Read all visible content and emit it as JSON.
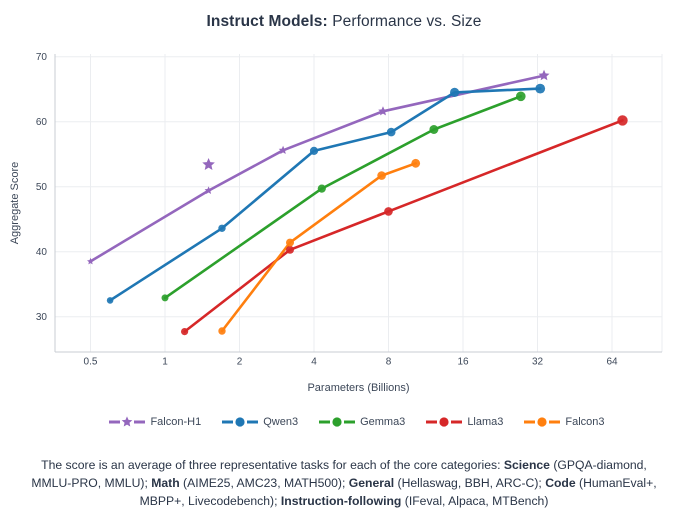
{
  "title": {
    "bold": "Instruct Models:",
    "regular": " Performance vs. Size"
  },
  "chart_data": {
    "type": "line",
    "title": "Instruct Models: Performance vs. Size",
    "xlabel": "Parameters (Billions)",
    "ylabel": "Aggregate Score",
    "x_scale": "log2",
    "x_ticks": [
      0.5,
      1,
      2,
      4,
      8,
      16,
      32,
      64
    ],
    "y_ticks": [
      30,
      40,
      50,
      60,
      70
    ],
    "xlim": [
      0.36,
      102
    ],
    "ylim": [
      24.5,
      70.5
    ],
    "grid": true,
    "legend_position": "bottom",
    "series": [
      {
        "name": "Falcon-H1",
        "color": "#9467bd",
        "marker": "star",
        "points": [
          [
            0.5,
            38.5
          ],
          [
            1.5,
            49.4
          ],
          [
            3,
            55.6
          ],
          [
            7.6,
            61.6
          ],
          [
            34,
            67.1
          ]
        ],
        "isolated_points": [
          [
            1.5,
            53.4
          ]
        ]
      },
      {
        "name": "Qwen3",
        "color": "#1f77b4",
        "marker": "circle",
        "points": [
          [
            0.6,
            32.5
          ],
          [
            1.7,
            43.6
          ],
          [
            4,
            55.5
          ],
          [
            8.2,
            58.4
          ],
          [
            14.8,
            64.5
          ],
          [
            32.8,
            65.1
          ]
        ]
      },
      {
        "name": "Gemma3",
        "color": "#2ca02c",
        "marker": "circle",
        "points": [
          [
            1,
            32.9
          ],
          [
            4.3,
            49.7
          ],
          [
            12.2,
            58.8
          ],
          [
            27.4,
            63.9
          ]
        ]
      },
      {
        "name": "Llama3",
        "color": "#d62728",
        "marker": "circle",
        "points": [
          [
            1.2,
            27.7
          ],
          [
            3.2,
            40.3
          ],
          [
            8,
            46.2
          ],
          [
            70.6,
            60.2
          ]
        ]
      },
      {
        "name": "Falcon3",
        "color": "#ff7f0e",
        "marker": "circle",
        "points": [
          [
            1.7,
            27.8
          ],
          [
            3.2,
            41.4
          ],
          [
            7.5,
            51.7
          ],
          [
            10.3,
            53.6
          ]
        ]
      }
    ]
  },
  "colors": {
    "text_dark": "#2a3547",
    "tick_label": "#3c4758",
    "grid": "#ebedf0",
    "spine": "#c8ccd3"
  },
  "footnote": {
    "segments": [
      {
        "text": "The score is an average of three representative tasks for each of the core categories: ",
        "bold": false
      },
      {
        "text": "Science",
        "bold": true
      },
      {
        "text": " (GPQA-diamond, MMLU-PRO, MMLU); ",
        "bold": false
      },
      {
        "text": "Math",
        "bold": true
      },
      {
        "text": " (AIME25, AMC23, MATH500); ",
        "bold": false
      },
      {
        "text": "General",
        "bold": true
      },
      {
        "text": " (Hellaswag, BBH, ARC-C); ",
        "bold": false
      },
      {
        "text": "Code",
        "bold": true
      },
      {
        "text": " (HumanEval+, MBPP+, Livecodebench); ",
        "bold": false
      },
      {
        "text": "Instruction-following",
        "bold": true
      },
      {
        "text": " (IFeval, Alpaca, MTBench)",
        "bold": false
      }
    ]
  }
}
